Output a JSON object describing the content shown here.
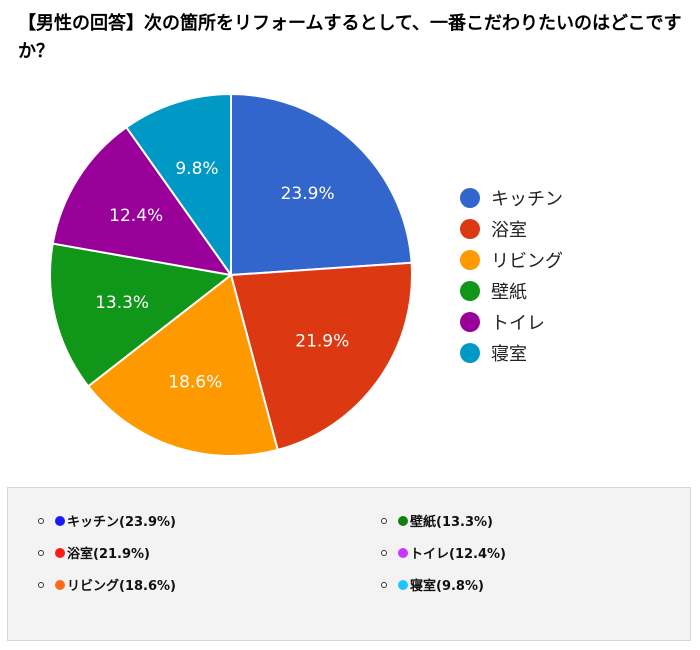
{
  "title": "【男性の回答】次の箇所をリフォームするとして、一番こだわりたいのはどこですか？",
  "chart_data": {
    "type": "pie",
    "categories": [
      "キッチン",
      "浴室",
      "リビング",
      "壁紙",
      "トイレ",
      "寝室"
    ],
    "values": [
      23.9,
      21.9,
      18.6,
      13.3,
      12.4,
      9.8
    ],
    "data_labels": [
      "23.9%",
      "21.9%",
      "18.6%",
      "13.3%",
      "12.4%",
      "9.8%"
    ],
    "colors": [
      "#3366cc",
      "#dc3912",
      "#ff9900",
      "#109618",
      "#990099",
      "#0099c6"
    ],
    "legend": "right"
  },
  "summary": {
    "items": [
      {
        "label": "キッチン(23.9%)",
        "color": "#1a1aff"
      },
      {
        "label": "浴室(21.9%)",
        "color": "#ff1a1a"
      },
      {
        "label": "リビング(18.6%)",
        "color": "#ff6a1a"
      },
      {
        "label": "壁紙(13.3%)",
        "color": "#108010"
      },
      {
        "label": "トイレ(12.4%)",
        "color": "#cc33ff"
      },
      {
        "label": "寝室(9.8%)",
        "color": "#1ac6ff"
      }
    ]
  }
}
